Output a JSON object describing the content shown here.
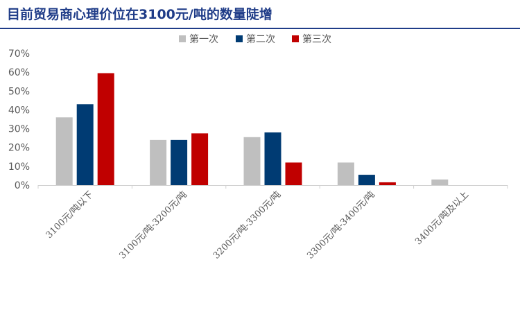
{
  "colors": {
    "title": "#1f3c88",
    "axis": "#d0d0d0",
    "text": "#595959"
  },
  "chart_data": {
    "type": "bar",
    "title": "目前贸易商心理价位在3100元/吨的数量陡增",
    "categories": [
      "3100元/吨以下",
      "3100元/吨-3200元/吨",
      "3200元/吨-3300元/吨",
      "3300元/吨-3400元/吨",
      "3400元/吨及以上"
    ],
    "series": [
      {
        "name": "第一次",
        "color": "#bfbfbf",
        "values": [
          36,
          24,
          25.5,
          12,
          3
        ]
      },
      {
        "name": "第二次",
        "color": "#003b73",
        "values": [
          43,
          24,
          28,
          5.5,
          0
        ]
      },
      {
        "name": "第三次",
        "color": "#c00000",
        "values": [
          59.5,
          27.5,
          12,
          1.5,
          0
        ]
      }
    ],
    "ylim": [
      0,
      70
    ],
    "yticks": [
      0,
      10,
      20,
      30,
      40,
      50,
      60,
      70
    ],
    "ytick_labels": [
      "0%",
      "10%",
      "20%",
      "30%",
      "40%",
      "50%",
      "60%",
      "70%"
    ],
    "xlabel": "",
    "ylabel": "",
    "grid": false,
    "legend_position": "top-center"
  }
}
